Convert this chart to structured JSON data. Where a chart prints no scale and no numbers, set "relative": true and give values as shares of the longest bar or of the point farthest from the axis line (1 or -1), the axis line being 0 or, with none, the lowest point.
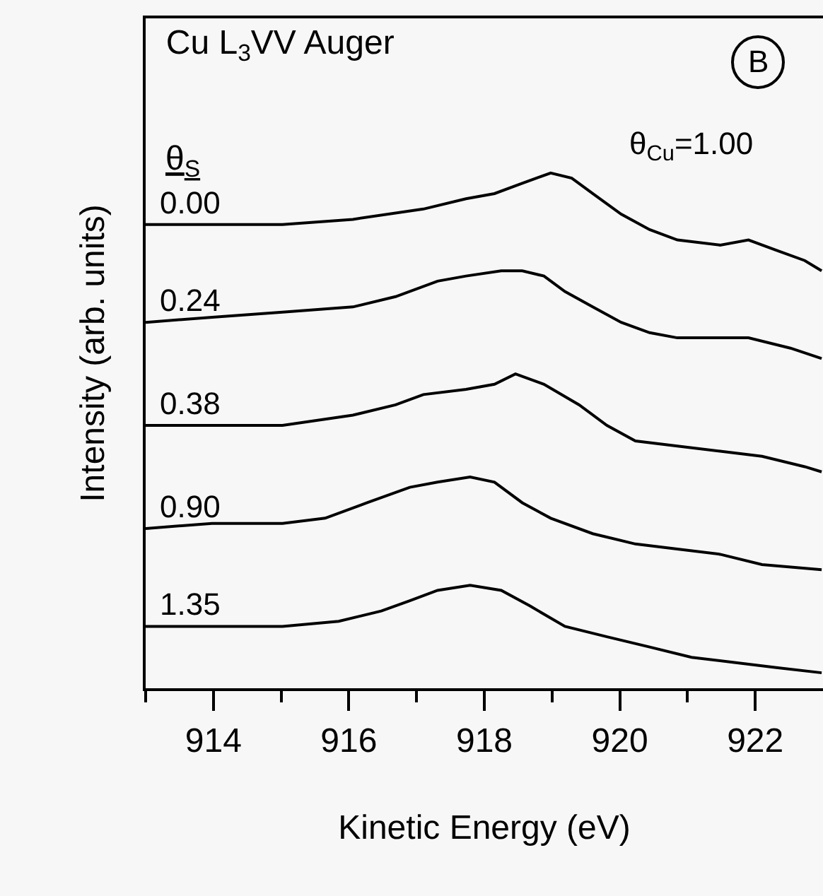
{
  "chart_data": {
    "type": "line",
    "title": "Cu L$_{3}$VV Auger",
    "xlabel": "Kinetic Energy (eV)",
    "ylabel": "Intensity (arb. units)",
    "legend_title": "θ$_{S}$",
    "relative": true,
    "xlim": [
      913,
      923
    ],
    "xticks": [
      {
        "value": 913,
        "label": null
      },
      914,
      {
        "value": 915,
        "label": null
      },
      916,
      {
        "value": 917,
        "label": null
      },
      918,
      {
        "value": 919,
        "label": null
      },
      920,
      {
        "value": 921,
        "label": null
      },
      922
    ],
    "annotations": [
      "θ$_{Cu}$=1.00",
      "B"
    ],
    "series": [
      {
        "name": "0.00",
        "color": "#000000",
        "x": [
          913,
          913.98,
          915.02,
          916.06,
          917.1,
          917.73,
          918.15,
          918.56,
          918.98,
          919.29,
          919.6,
          920.02,
          920.44,
          920.85,
          921.48,
          921.9,
          922.31,
          922.73,
          922.98
        ],
        "values": [
          0.9,
          0.9,
          0.9,
          0.91,
          0.93,
          0.95,
          0.96,
          0.98,
          1.0,
          0.99,
          0.96,
          0.92,
          0.89,
          0.87,
          0.86,
          0.87,
          0.85,
          0.83,
          0.81
        ]
      },
      {
        "name": "0.24",
        "color": "#000000",
        "x": [
          913,
          913.98,
          915.02,
          916.06,
          916.69,
          917.31,
          917.73,
          918.25,
          918.56,
          918.88,
          919.19,
          919.6,
          920.02,
          920.44,
          920.85,
          921.48,
          921.9,
          922.52,
          922.98
        ],
        "values": [
          0.71,
          0.72,
          0.73,
          0.74,
          0.76,
          0.79,
          0.8,
          0.81,
          0.81,
          0.8,
          0.77,
          0.74,
          0.71,
          0.69,
          0.68,
          0.68,
          0.68,
          0.66,
          0.64
        ]
      },
      {
        "name": "0.38",
        "color": "#000000",
        "x": [
          913,
          913.98,
          915.02,
          916.06,
          916.69,
          917.1,
          917.73,
          918.15,
          918.46,
          918.88,
          919.4,
          919.81,
          920.23,
          920.85,
          921.48,
          922.1,
          922.73,
          922.98
        ],
        "values": [
          0.51,
          0.51,
          0.51,
          0.53,
          0.55,
          0.57,
          0.58,
          0.59,
          0.61,
          0.59,
          0.55,
          0.51,
          0.48,
          0.47,
          0.46,
          0.45,
          0.43,
          0.42
        ]
      },
      {
        "name": "0.90",
        "color": "#000000",
        "x": [
          913,
          913.98,
          915.02,
          915.65,
          916.27,
          916.9,
          917.31,
          917.79,
          918.15,
          918.56,
          918.98,
          919.6,
          920.23,
          920.85,
          921.48,
          922.1,
          922.98
        ],
        "values": [
          0.31,
          0.32,
          0.32,
          0.33,
          0.36,
          0.39,
          0.4,
          0.41,
          0.4,
          0.36,
          0.33,
          0.3,
          0.28,
          0.27,
          0.26,
          0.24,
          0.23
        ]
      },
      {
        "name": "1.35",
        "color": "#000000",
        "x": [
          913,
          913.98,
          915.02,
          915.85,
          916.48,
          916.9,
          917.31,
          917.79,
          918.25,
          918.67,
          919.19,
          919.81,
          920.44,
          921.06,
          921.69,
          922.31,
          922.98
        ],
        "values": [
          0.12,
          0.12,
          0.12,
          0.13,
          0.15,
          0.17,
          0.19,
          0.2,
          0.19,
          0.16,
          0.12,
          0.1,
          0.08,
          0.06,
          0.05,
          0.04,
          0.03
        ]
      }
    ]
  }
}
